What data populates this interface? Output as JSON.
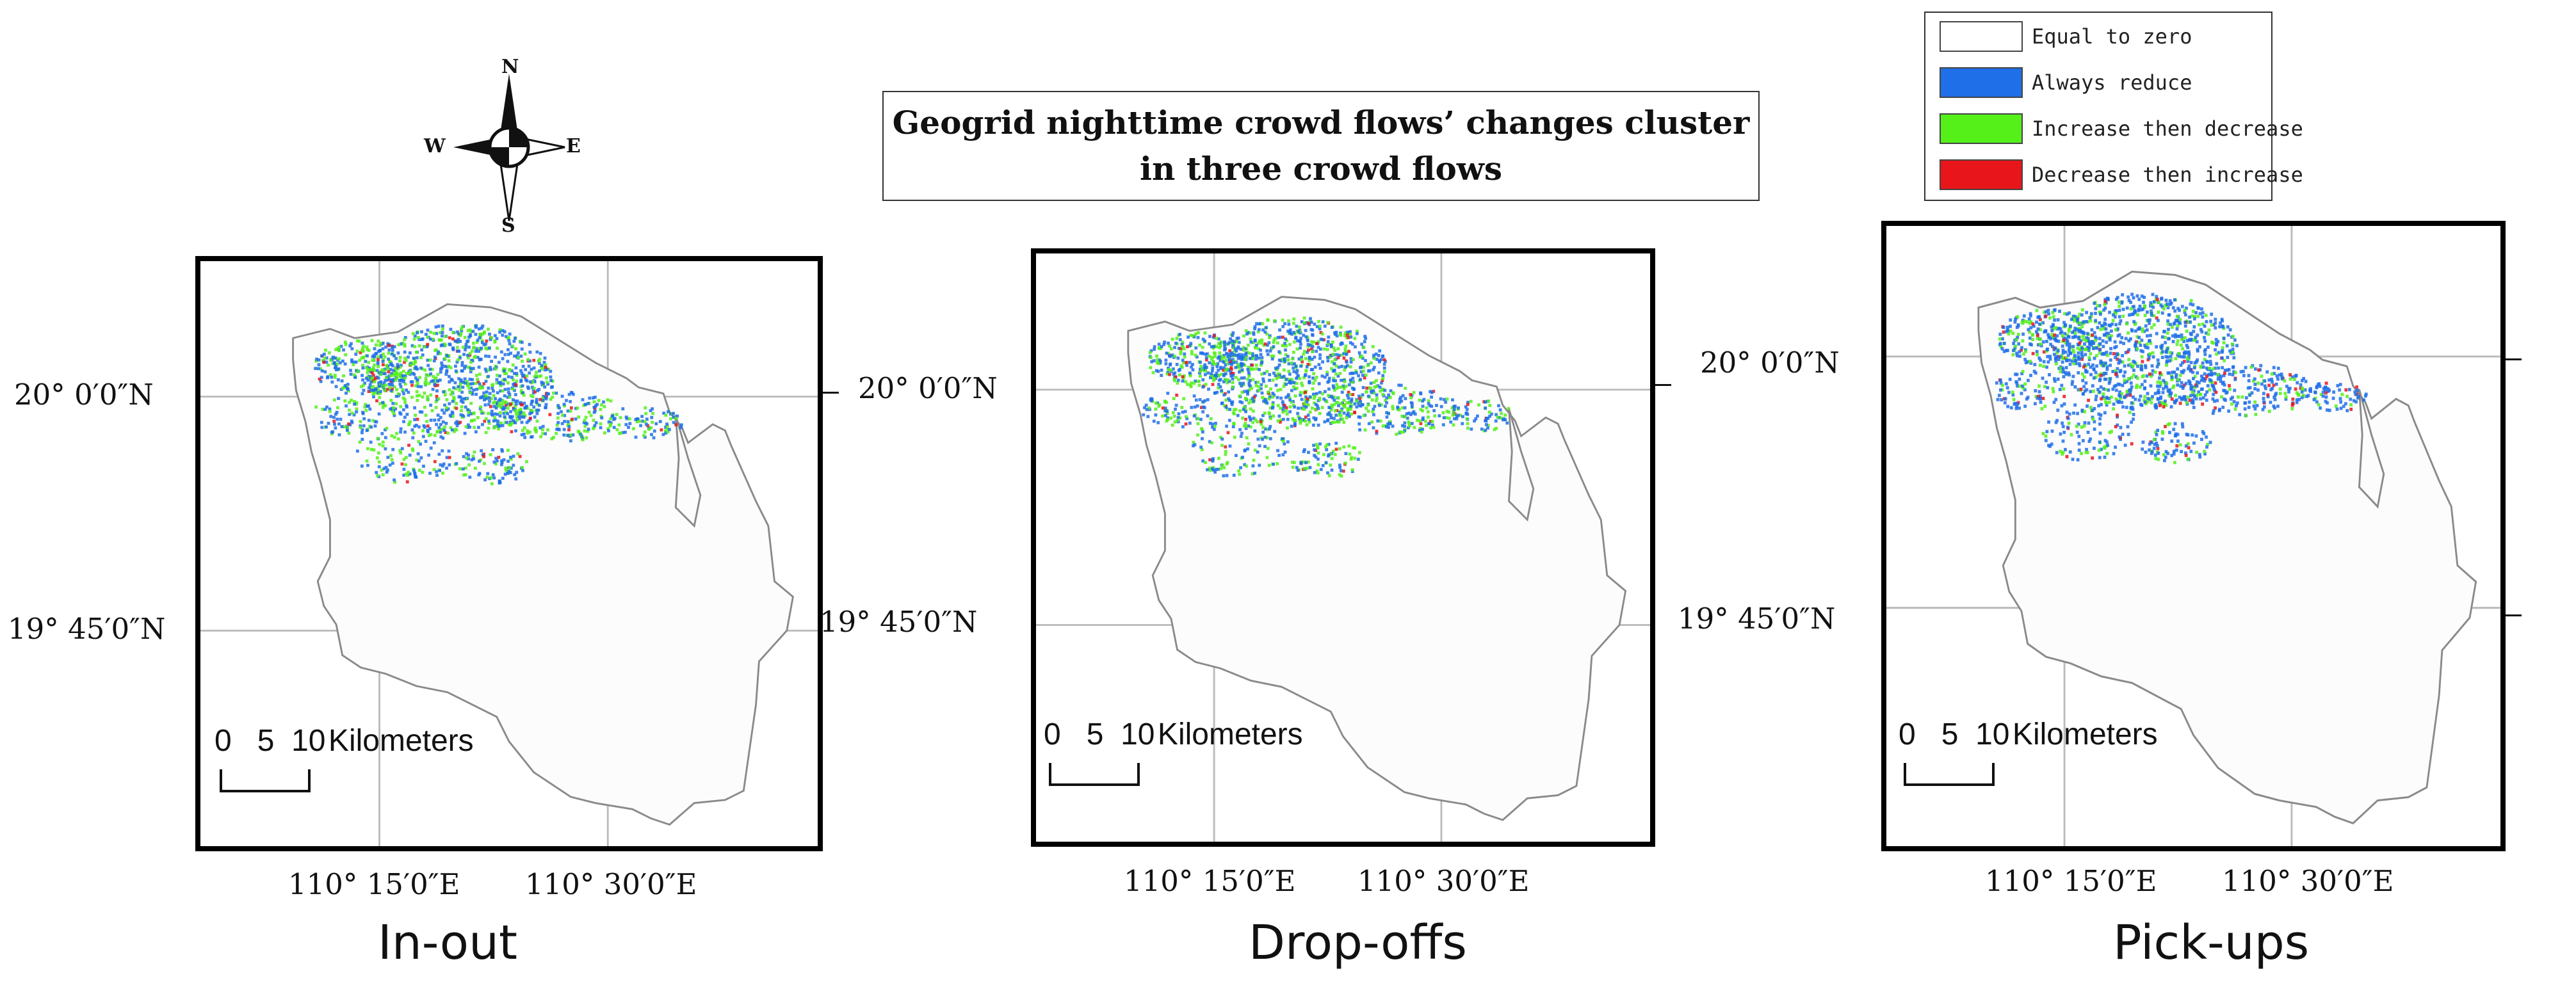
{
  "title": {
    "line1": "Geogrid nighttime crowd flows’ changes cluster",
    "line2": "in three crowd flows"
  },
  "legend": [
    {
      "label": "Equal to zero",
      "color": "#ffffff"
    },
    {
      "label": "Always reduce",
      "color": "#1f6fe8"
    },
    {
      "label": "Increase then decrease",
      "color": "#55f01a"
    },
    {
      "label": "Decrease then increase",
      "color": "#e8161b"
    }
  ],
  "compass": {
    "n": "N",
    "s": "S",
    "e": "E",
    "w": "W"
  },
  "coordinates": {
    "lat_20": "20° 0′0″N",
    "lat_1945": "19° 45′0″N",
    "lon_1015": "110° 15′0″E",
    "lon_1030": "110° 30′0″E"
  },
  "scalebar": {
    "ticks": "0   5  10",
    "unit": "Kilometers"
  },
  "panels": [
    {
      "caption": "In-out"
    },
    {
      "caption": "Drop-offs"
    },
    {
      "caption": "Pick-ups"
    }
  ]
}
